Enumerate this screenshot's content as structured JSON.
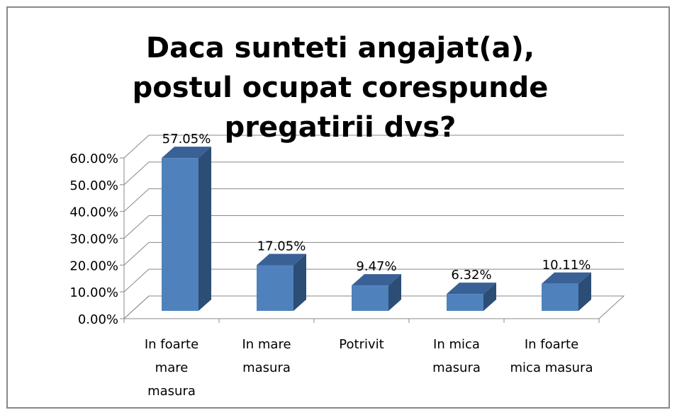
{
  "chart_data": {
    "type": "bar3d",
    "title": "Daca sunteti angajat(a), postul ocupat corespunde pregatirii dvs?",
    "categories": [
      "In foarte mare masura",
      "In mare masura",
      "Potrivit",
      "In mica masura",
      "In foarte mica masura"
    ],
    "values": [
      57.05,
      17.05,
      9.47,
      6.32,
      10.11
    ],
    "value_labels": [
      "57.05%",
      "17.05%",
      "9.47%",
      "6.32%",
      "10.11%"
    ],
    "color": "#4f81bd",
    "ylim": [
      0,
      60
    ],
    "yticks": [
      {
        "value": 0,
        "label": "0.00%"
      },
      {
        "value": 10,
        "label": "10.00%"
      },
      {
        "value": 20,
        "label": "20.00%"
      },
      {
        "value": 30,
        "label": "30.00%"
      },
      {
        "value": 40,
        "label": "40.00%"
      },
      {
        "value": 50,
        "label": "50.00%"
      },
      {
        "value": 60,
        "label": "60.00%"
      }
    ],
    "grid": true
  }
}
